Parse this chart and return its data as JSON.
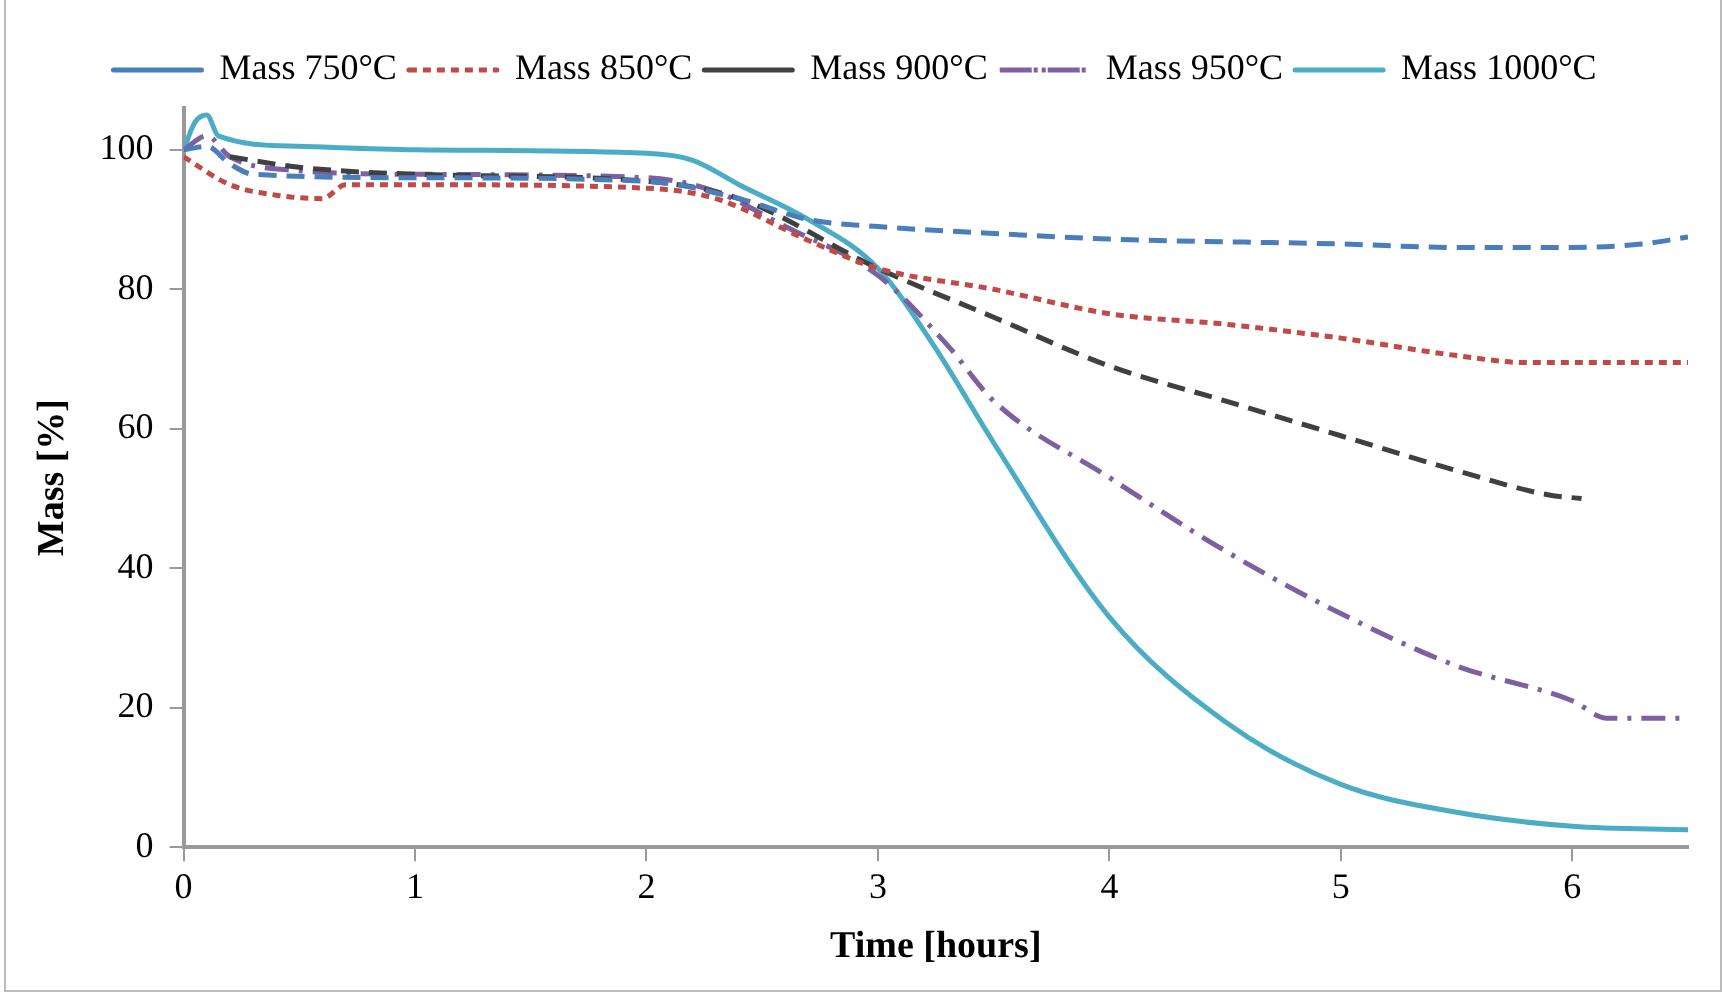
{
  "chart_data": {
    "type": "line",
    "xlabel": "Time [hours]",
    "ylabel": "Mass [%]",
    "xlim": [
      0,
      6.5
    ],
    "xticks": [
      0,
      1,
      2,
      3,
      4,
      5,
      6
    ],
    "ylim": [
      0,
      106
    ],
    "yticks": [
      0,
      20,
      40,
      60,
      80,
      100
    ],
    "grid": false,
    "legend": "top",
    "marker": "none",
    "series": [
      {
        "name": "Mass 750°C",
        "color": "#4a7ebb",
        "line_style": "dashed",
        "x": [
          0,
          0.1,
          0.2,
          0.3,
          1,
          2,
          2.4,
          2.7,
          3,
          3.5,
          4,
          5,
          5.5,
          6,
          6.3,
          6.5
        ],
        "values": [
          100,
          100.5,
          98,
          96.5,
          96,
          95.5,
          93,
          90,
          89,
          88,
          87.2,
          86.5,
          86,
          86,
          86.5,
          87.5
        ]
      },
      {
        "name": "Mass 850°C",
        "color": "#be4b48",
        "line_style": "dotted",
        "x": [
          0,
          0.2,
          0.4,
          0.6,
          0.7,
          1,
          2,
          2.3,
          2.7,
          3,
          3.5,
          4,
          4.5,
          5,
          5.5,
          5.8,
          6.5
        ],
        "values": [
          99,
          95,
          93.5,
          93,
          95,
          95,
          94.5,
          93,
          87,
          83,
          80,
          76.5,
          75,
          73,
          70.5,
          69.5,
          69.5
        ]
      },
      {
        "name": "Mass 900°C",
        "color": "#404040",
        "line_style": "dashed",
        "x": [
          0.2,
          0.5,
          1,
          2,
          2.4,
          3,
          3.5,
          4,
          4.5,
          5,
          5.5,
          5.9,
          6.04
        ],
        "values": [
          99,
          97.5,
          96.5,
          95.5,
          93,
          83,
          76,
          69,
          64,
          59,
          54,
          50.5,
          50
        ]
      },
      {
        "name": "Mass 950°C",
        "color": "#7d60a0",
        "line_style": "dashdot",
        "x": [
          0,
          0.1,
          0.2,
          0.5,
          1,
          2,
          2.3,
          2.6,
          3,
          3.3,
          3.5,
          4,
          4.5,
          5,
          5.5,
          6,
          6.15,
          6.5
        ],
        "values": [
          100,
          102,
          99,
          97,
          96.5,
          96,
          94,
          89,
          82,
          72,
          64,
          53,
          42.5,
          33.5,
          26,
          21,
          18.5,
          18.5
        ]
      },
      {
        "name": "Mass 1000°C",
        "color": "#4bacc6",
        "line_style": "solid",
        "x": [
          0,
          0.05,
          0.1,
          0.15,
          0.5,
          1,
          2,
          2.2,
          2.4,
          2.7,
          3,
          3.24,
          3.5,
          4,
          4.5,
          5,
          5.5,
          6,
          6.5
        ],
        "values": [
          100,
          104,
          105,
          102,
          100.5,
          100,
          99.5,
          98.5,
          95,
          90,
          83,
          72,
          58,
          33,
          18,
          9,
          5,
          3,
          2.5
        ]
      }
    ]
  }
}
